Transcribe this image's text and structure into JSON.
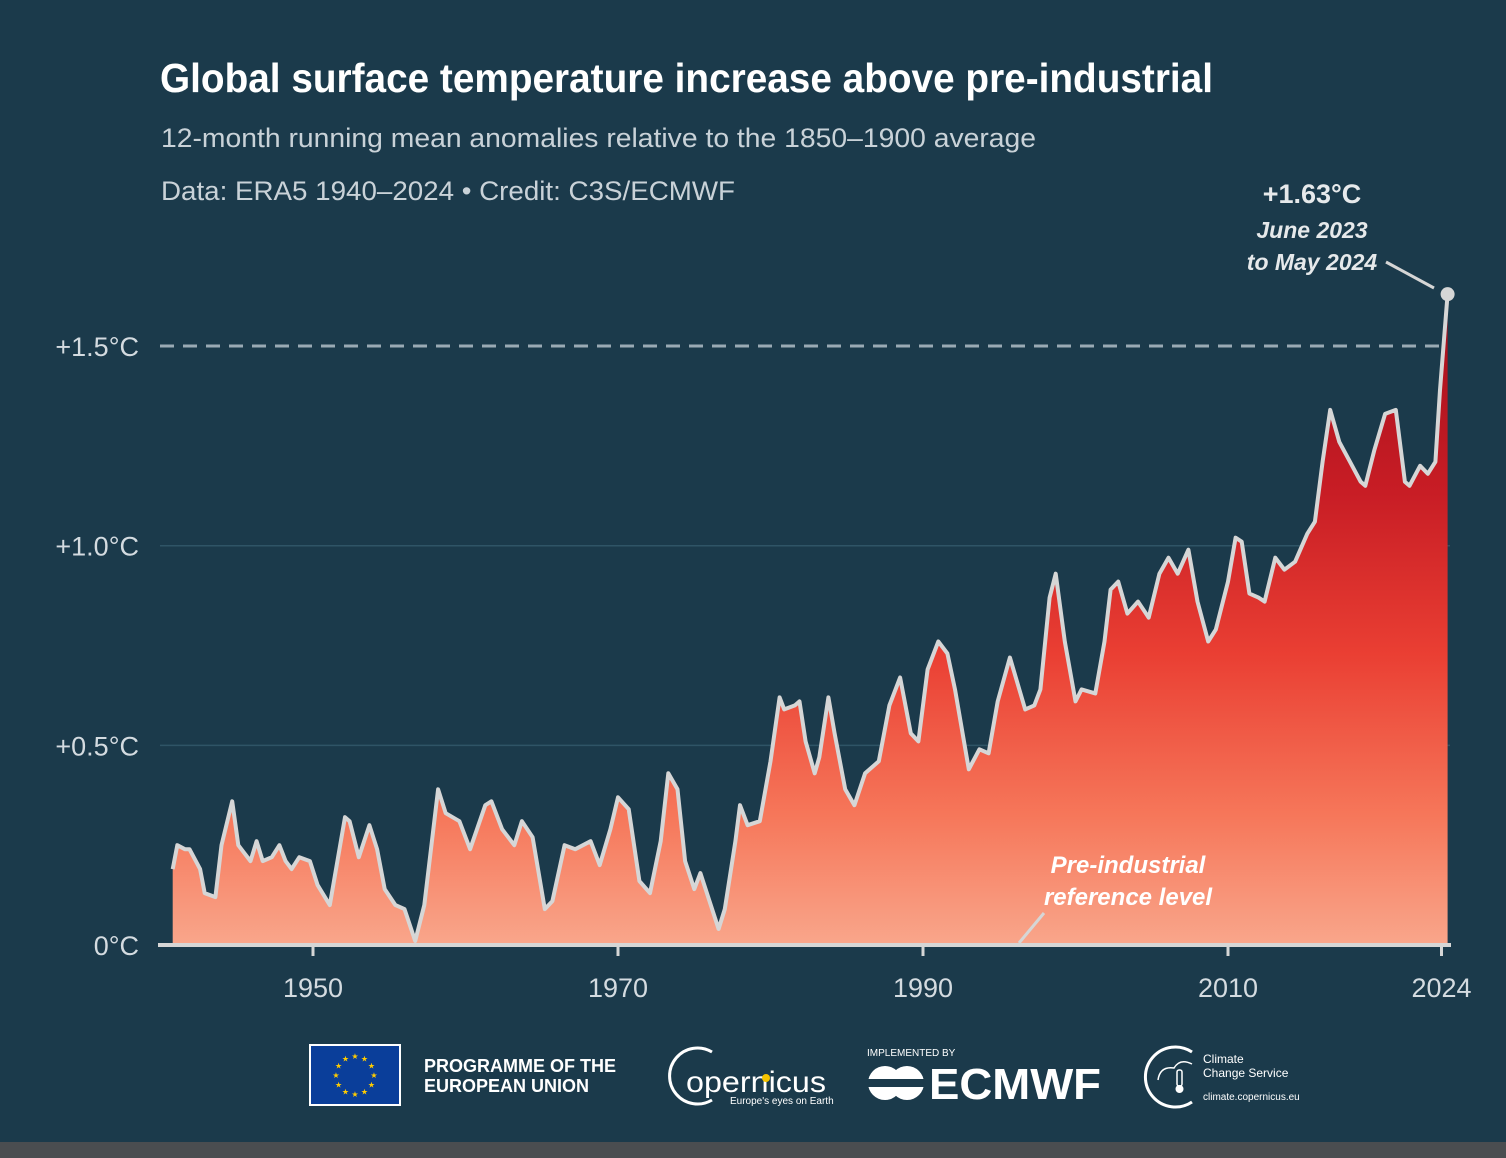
{
  "header": {
    "title": "Global surface temperature increase above pre-industrial",
    "subtitle": "12-month running mean anomalies relative to the 1850–1900 average",
    "credit": "Data: ERA5 1940–2024 • Credit: C3S/ECMWF"
  },
  "chart_data": {
    "type": "area",
    "title": "Global surface temperature increase above pre-industrial",
    "xlabel": "",
    "ylabel": "",
    "xlim": [
      1940,
      2024.5
    ],
    "ylim": [
      0,
      1.75
    ],
    "yticks": [
      {
        "value": 0,
        "label": "0°C"
      },
      {
        "value": 0.5,
        "label": "+0.5°C"
      },
      {
        "value": 1.0,
        "label": "+1.0°C"
      },
      {
        "value": 1.5,
        "label": "+1.5°C"
      }
    ],
    "xticks": [
      {
        "value": 1950,
        "label": "1950"
      },
      {
        "value": 1970,
        "label": "1970"
      },
      {
        "value": 1990,
        "label": "1990"
      },
      {
        "value": 2010,
        "label": "2010"
      },
      {
        "value": 2024,
        "label": "2024"
      }
    ],
    "threshold": 1.5,
    "x": [
      1940.8,
      1941.1,
      1941.6,
      1941.9,
      1942.6,
      1942.9,
      1943.6,
      1944.0,
      1944.7,
      1945.1,
      1945.5,
      1945.9,
      1946.3,
      1946.7,
      1947.3,
      1947.8,
      1948.2,
      1948.6,
      1949.1,
      1949.8,
      1950.3,
      1951.1,
      1952.1,
      1952.4,
      1953.0,
      1953.7,
      1954.2,
      1954.7,
      1955.4,
      1956.0,
      1956.7,
      1957.3,
      1958.2,
      1958.7,
      1959.6,
      1960.3,
      1961.3,
      1961.7,
      1962.4,
      1963.2,
      1963.7,
      1964.4,
      1965.2,
      1965.7,
      1966.5,
      1967.2,
      1968.2,
      1968.8,
      1969.5,
      1970.0,
      1970.7,
      1971.4,
      1972.1,
      1972.8,
      1973.3,
      1973.9,
      1974.4,
      1975.0,
      1975.4,
      1976.0,
      1976.6,
      1977.0,
      1977.7,
      1978.0,
      1978.5,
      1979.3,
      1980.0,
      1980.6,
      1980.9,
      1981.6,
      1981.9,
      1982.3,
      1982.9,
      1983.2,
      1983.8,
      1984.2,
      1984.9,
      1985.5,
      1986.2,
      1987.1,
      1987.8,
      1988.5,
      1989.2,
      1989.7,
      1990.3,
      1991.0,
      1991.6,
      1992.1,
      1993.0,
      1993.7,
      1994.3,
      1994.9,
      1995.7,
      1996.7,
      1997.3,
      1997.7,
      1998.3,
      1998.7,
      1999.3,
      2000.0,
      2000.4,
      2001.3,
      2001.9,
      2002.3,
      2002.8,
      2003.4,
      2004.1,
      2004.8,
      2005.5,
      2006.1,
      2006.7,
      2007.4,
      2008.0,
      2008.7,
      2009.2,
      2010.0,
      2010.5,
      2010.9,
      2011.4,
      2012.0,
      2012.4,
      2013.1,
      2013.7,
      2014.4,
      2015.2,
      2015.7,
      2016.2,
      2016.7,
      2017.3,
      2018.0,
      2018.7,
      2019.0,
      2019.6,
      2020.3,
      2021.0,
      2021.6,
      2021.9,
      2022.6,
      2023.1,
      2023.6,
      2023.9,
      2024.4
    ],
    "series": [
      {
        "name": "12-month running mean anomaly (°C)",
        "values": [
          0.19,
          0.25,
          0.24,
          0.24,
          0.19,
          0.13,
          0.12,
          0.25,
          0.36,
          0.25,
          0.23,
          0.21,
          0.26,
          0.21,
          0.22,
          0.25,
          0.21,
          0.19,
          0.22,
          0.21,
          0.15,
          0.1,
          0.32,
          0.31,
          0.22,
          0.3,
          0.24,
          0.14,
          0.1,
          0.09,
          0.01,
          0.1,
          0.39,
          0.33,
          0.31,
          0.24,
          0.35,
          0.36,
          0.29,
          0.25,
          0.31,
          0.27,
          0.09,
          0.11,
          0.25,
          0.24,
          0.26,
          0.2,
          0.29,
          0.37,
          0.34,
          0.16,
          0.13,
          0.26,
          0.43,
          0.39,
          0.21,
          0.14,
          0.18,
          0.11,
          0.04,
          0.09,
          0.26,
          0.35,
          0.3,
          0.31,
          0.46,
          0.62,
          0.59,
          0.6,
          0.61,
          0.51,
          0.43,
          0.47,
          0.62,
          0.53,
          0.39,
          0.35,
          0.43,
          0.46,
          0.6,
          0.67,
          0.53,
          0.51,
          0.69,
          0.76,
          0.73,
          0.64,
          0.44,
          0.49,
          0.48,
          0.61,
          0.72,
          0.59,
          0.6,
          0.64,
          0.87,
          0.93,
          0.76,
          0.61,
          0.64,
          0.63,
          0.76,
          0.89,
          0.91,
          0.83,
          0.86,
          0.82,
          0.93,
          0.97,
          0.93,
          0.99,
          0.86,
          0.76,
          0.79,
          0.91,
          1.02,
          1.01,
          0.88,
          0.87,
          0.86,
          0.97,
          0.94,
          0.96,
          1.03,
          1.06,
          1.21,
          1.34,
          1.26,
          1.21,
          1.16,
          1.15,
          1.24,
          1.33,
          1.34,
          1.16,
          1.15,
          1.2,
          1.18,
          1.21,
          1.39,
          1.63
        ]
      }
    ],
    "annotations": {
      "latest_value": "+1.63°C",
      "latest_period_line1": "June 2023",
      "latest_period_line2": "to May 2024",
      "reference_line1": "Pre-industrial",
      "reference_line2": "reference level"
    },
    "colors": {
      "background": "#1b3a4b",
      "line": "#d6d6d6",
      "fill_top": "#a50f1c",
      "fill_mid": "#e8392f",
      "fill_bottom": "#f9a68b",
      "threshold": "#9aaab4"
    }
  },
  "footer": {
    "eu_line1": "PROGRAMME OF THE",
    "eu_line2": "EUROPEAN UNION",
    "copernicus": "opernicus",
    "copernicus_tagline": "Europe's eyes on Earth",
    "ecmwf_caption": "IMPLEMENTED BY",
    "ecmwf": "ECMWF",
    "c3s_line1": "Climate",
    "c3s_line2": "Change Service",
    "c3s_url": "climate.copernicus.eu"
  }
}
